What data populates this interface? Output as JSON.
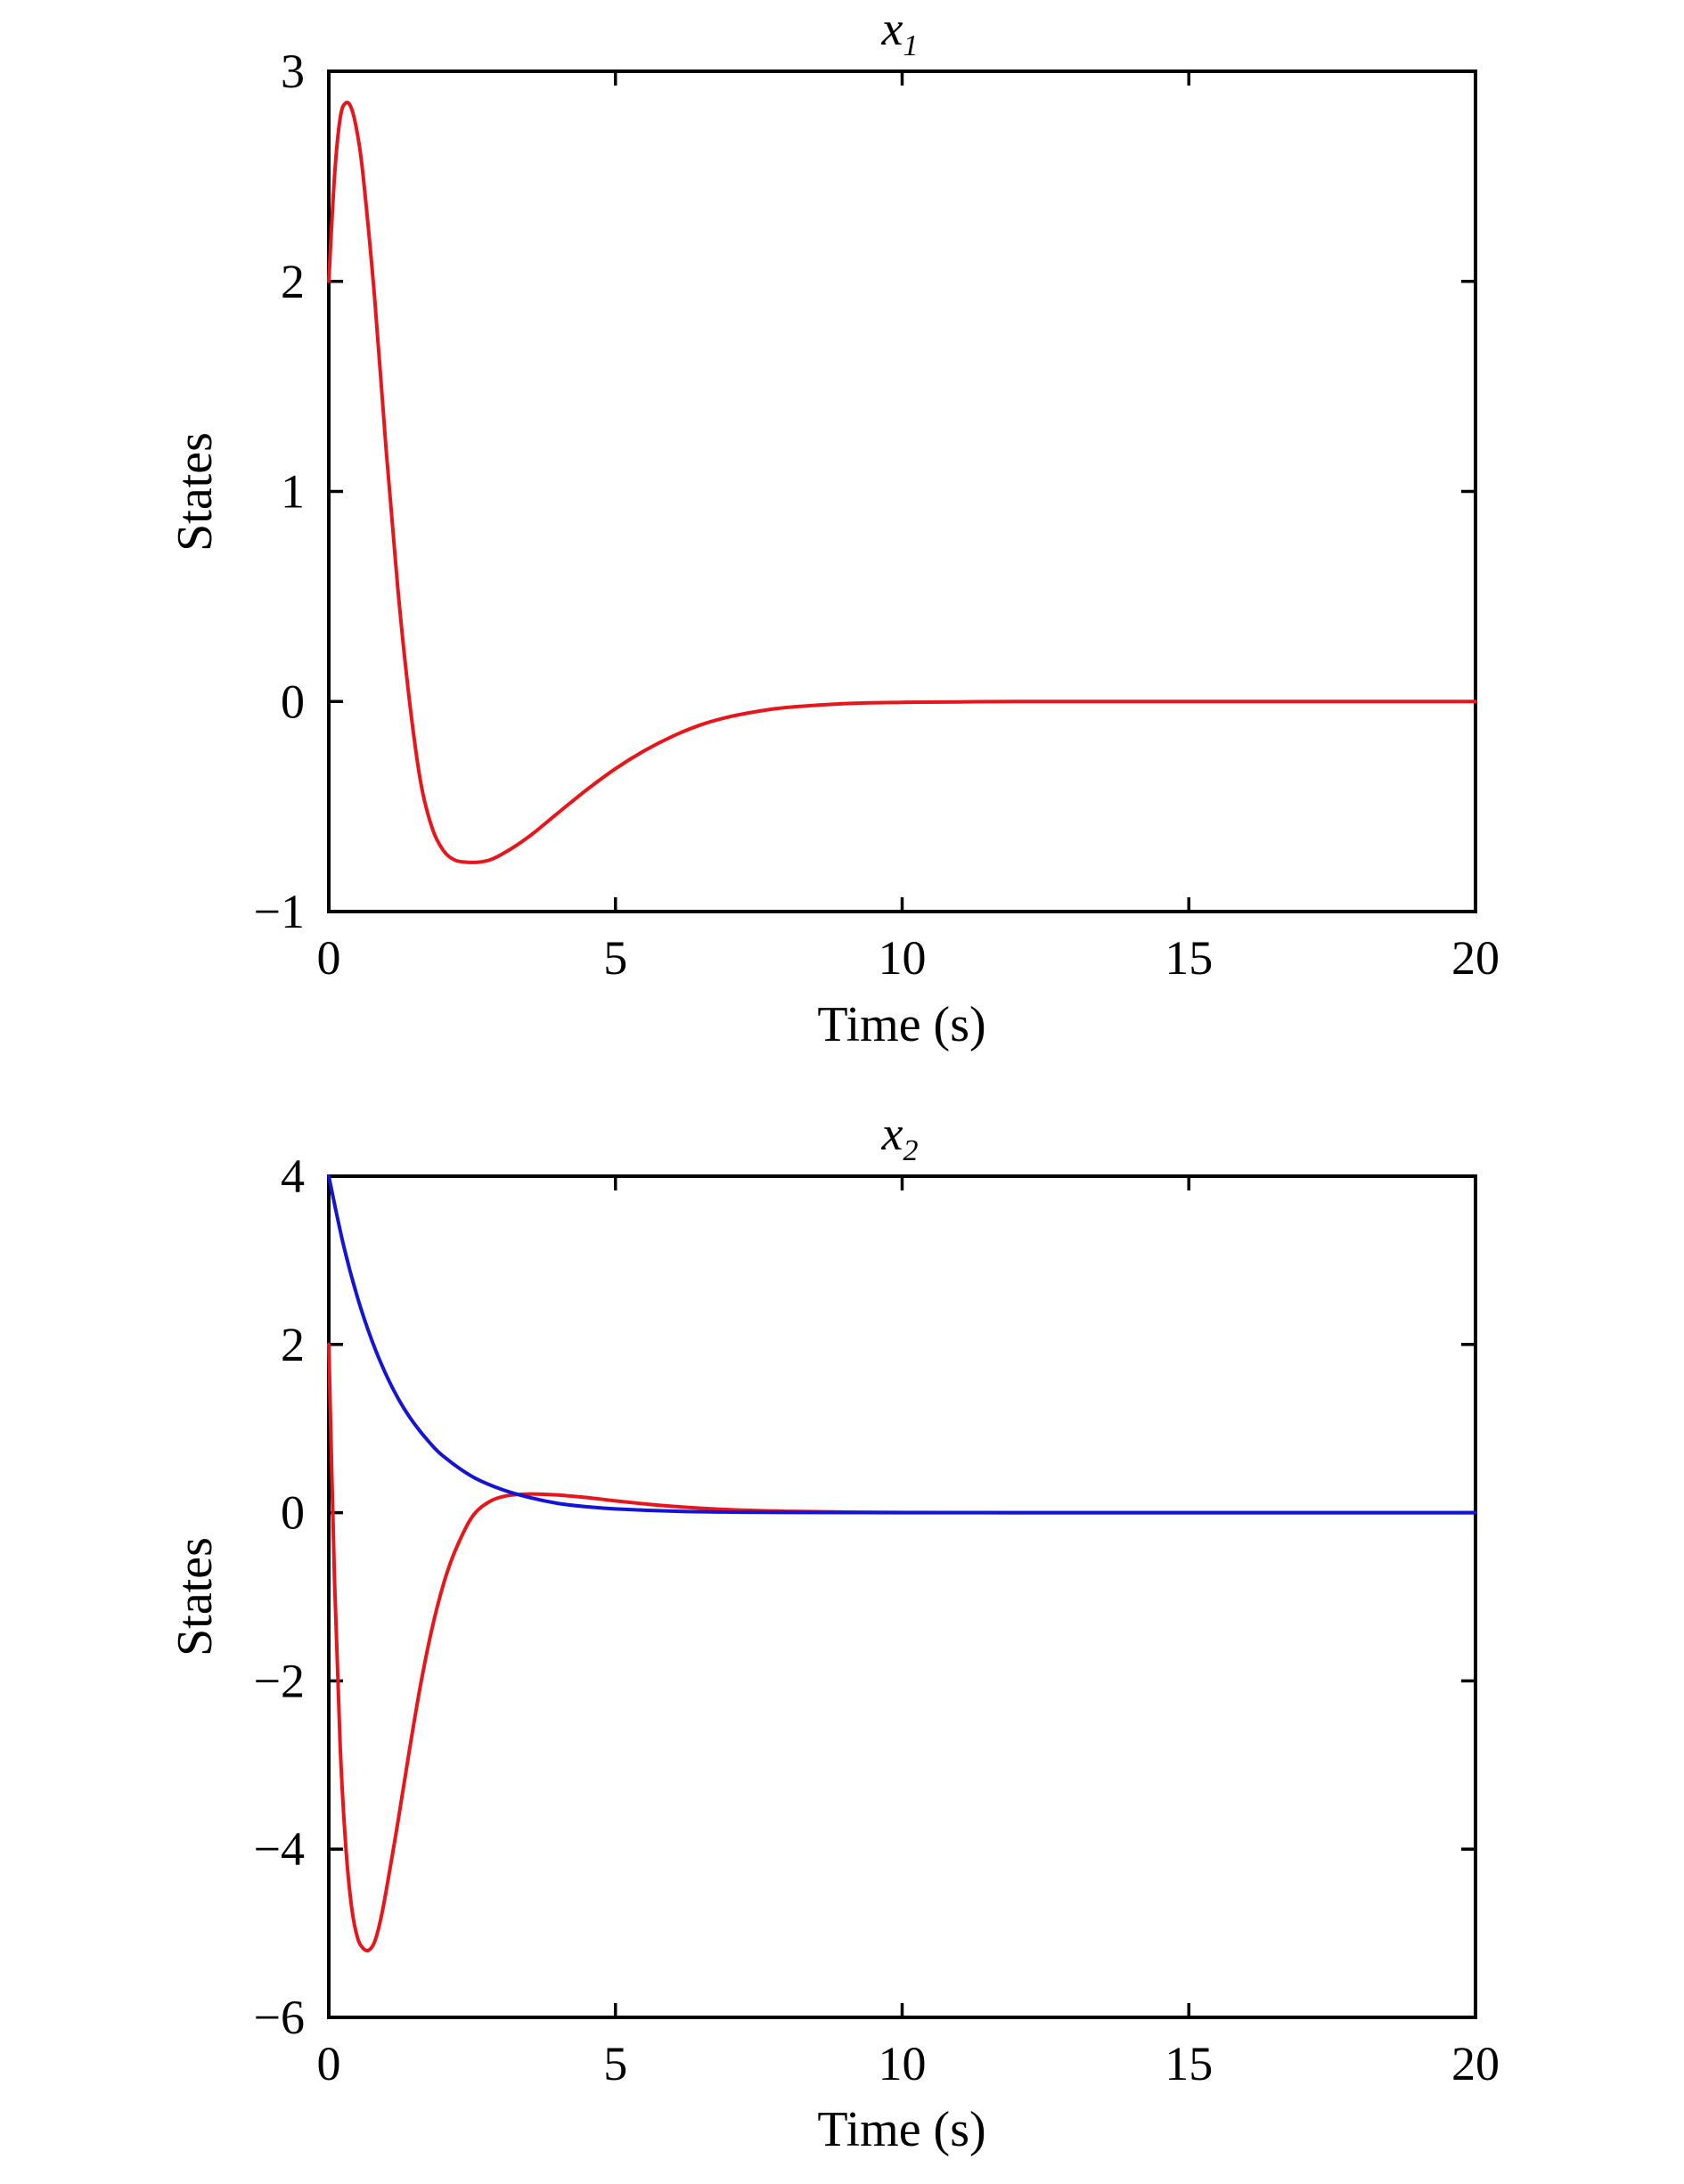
{
  "chart_data": [
    {
      "type": "line",
      "title": "x",
      "title_subscript": "1",
      "xlabel": "Time (s)",
      "ylabel": "States",
      "xlim": [
        0,
        20
      ],
      "ylim": [
        -1,
        3
      ],
      "xticks": [
        0,
        5,
        10,
        15,
        20
      ],
      "xtick_labels": [
        "0",
        "5",
        "10",
        "15",
        "20"
      ],
      "yticks": [
        -1,
        0,
        1,
        2,
        3
      ],
      "ytick_labels": [
        "−1",
        "0",
        "1",
        "2",
        "3"
      ],
      "grid": false,
      "series": [
        {
          "color": "#e8151b",
          "x": [
            0,
            0.1,
            0.2,
            0.3,
            0.4,
            0.5,
            0.6,
            0.8,
            1.0,
            1.2,
            1.4,
            1.6,
            1.8,
            2.0,
            2.2,
            2.4,
            2.6,
            2.8,
            3.0,
            3.3,
            3.6,
            4.0,
            4.5,
            5.0,
            5.5,
            6.0,
            6.5,
            7.0,
            7.5,
            8.0,
            9.0,
            10.0,
            11.0,
            12.0,
            14.0,
            16.0,
            18.0,
            20.0
          ],
          "y": [
            2.0,
            2.5,
            2.78,
            2.85,
            2.82,
            2.7,
            2.5,
            1.92,
            1.2,
            0.55,
            0.02,
            -0.38,
            -0.6,
            -0.71,
            -0.755,
            -0.765,
            -0.765,
            -0.755,
            -0.73,
            -0.68,
            -0.62,
            -0.53,
            -0.42,
            -0.32,
            -0.235,
            -0.165,
            -0.11,
            -0.072,
            -0.046,
            -0.028,
            -0.01,
            -0.004,
            -0.002,
            0.0,
            0.0,
            0.0,
            0.0,
            0.0
          ]
        }
      ]
    },
    {
      "type": "line",
      "title": "x",
      "title_subscript": "2",
      "xlabel": "Time (s)",
      "ylabel": "States",
      "xlim": [
        0,
        20
      ],
      "ylim": [
        -6,
        4
      ],
      "xticks": [
        0,
        5,
        10,
        15,
        20
      ],
      "xtick_labels": [
        "0",
        "5",
        "10",
        "15",
        "20"
      ],
      "yticks": [
        -6,
        -4,
        -2,
        0,
        2,
        4
      ],
      "ytick_labels": [
        "−6",
        "−4",
        "−2",
        "0",
        "2",
        "4"
      ],
      "grid": false,
      "series": [
        {
          "color": "#e8151b",
          "x": [
            0,
            0.1,
            0.2,
            0.3,
            0.4,
            0.5,
            0.6,
            0.7,
            0.8,
            0.9,
            1.0,
            1.2,
            1.4,
            1.6,
            1.8,
            2.0,
            2.2,
            2.5,
            2.8,
            3.1,
            3.4,
            3.7,
            4.0,
            4.5,
            5.0,
            5.5,
            6.0,
            7.0,
            8.0,
            9.0,
            10.0,
            12.0,
            14.0,
            16.0,
            18.0,
            20.0
          ],
          "y": [
            2.0,
            -0.8,
            -2.8,
            -4.0,
            -4.7,
            -5.05,
            -5.18,
            -5.2,
            -5.1,
            -4.85,
            -4.5,
            -3.7,
            -2.85,
            -2.05,
            -1.38,
            -0.85,
            -0.46,
            -0.05,
            0.13,
            0.2,
            0.22,
            0.22,
            0.21,
            0.18,
            0.14,
            0.105,
            0.075,
            0.035,
            0.016,
            0.007,
            0.003,
            0.0,
            0.0,
            0.0,
            0.0,
            0.0
          ]
        },
        {
          "color": "#1414d4",
          "x": [
            0,
            0.25,
            0.5,
            0.75,
            1.0,
            1.25,
            1.5,
            1.75,
            2.0,
            2.5,
            3.0,
            3.5,
            4.0,
            4.5,
            5.0,
            6.0,
            7.0,
            8.0,
            10.0,
            12.0,
            14.0,
            16.0,
            18.0,
            20.0
          ],
          "y": [
            4.0,
            3.2,
            2.56,
            2.05,
            1.64,
            1.31,
            1.05,
            0.84,
            0.67,
            0.43,
            0.28,
            0.18,
            0.11,
            0.07,
            0.045,
            0.018,
            0.007,
            0.003,
            0.0,
            0.0,
            0.0,
            0.0,
            0.0,
            0.0
          ]
        }
      ]
    }
  ]
}
